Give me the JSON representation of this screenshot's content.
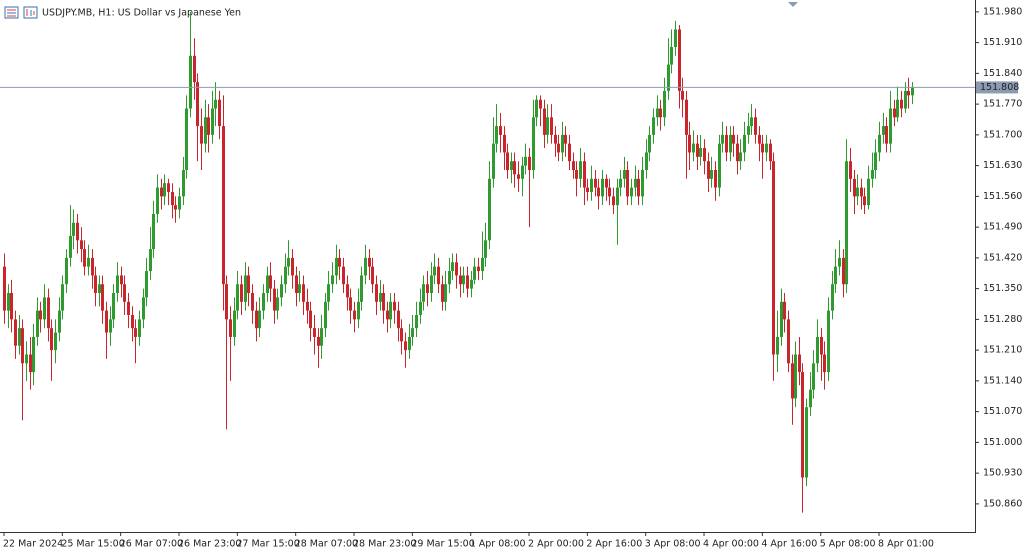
{
  "chart_data": {
    "type": "candlestick",
    "title": "USDJPY.MB, H1:  US Dollar vs Japanese Yen",
    "up_color": "#2f9a2f",
    "down_color": "#c8262c",
    "categories": [
      "22 Mar 2024",
      null,
      null,
      null,
      null,
      null,
      null,
      null,
      null,
      null,
      null,
      null,
      null,
      null,
      null,
      null,
      "25 Mar 15:00",
      null,
      null,
      null,
      null,
      null,
      null,
      null,
      null,
      null,
      null,
      null,
      null,
      null,
      null,
      null,
      "26 Mar 07:00",
      null,
      null,
      null,
      null,
      null,
      null,
      null,
      null,
      null,
      null,
      null,
      null,
      null,
      null,
      null,
      "26 Mar 23:00",
      null,
      null,
      null,
      null,
      null,
      null,
      null,
      null,
      null,
      null,
      null,
      null,
      null,
      null,
      null,
      "27 Mar 15:00",
      null,
      null,
      null,
      null,
      null,
      null,
      null,
      null,
      null,
      null,
      null,
      null,
      null,
      null,
      null,
      "28 Mar 07:00",
      null,
      null,
      null,
      null,
      null,
      null,
      null,
      null,
      null,
      null,
      null,
      null,
      null,
      null,
      null,
      "28 Mar 23:00",
      null,
      null,
      null,
      null,
      null,
      null,
      null,
      null,
      null,
      null,
      null,
      null,
      null,
      null,
      null,
      "29 Mar 15:00",
      null,
      null,
      null,
      null,
      null,
      null,
      null,
      null,
      null,
      null,
      null,
      null,
      null,
      null,
      null,
      "1 Apr 08:00",
      null,
      null,
      null,
      null,
      null,
      null,
      null,
      null,
      null,
      null,
      null,
      null,
      null,
      null,
      null,
      "2 Apr 00:00",
      null,
      null,
      null,
      null,
      null,
      null,
      null,
      null,
      null,
      null,
      null,
      null,
      null,
      null,
      null,
      "2 Apr 16:00",
      null,
      null,
      null,
      null,
      null,
      null,
      null,
      null,
      null,
      null,
      null,
      null,
      null,
      null,
      null,
      "3 Apr 08:00",
      null,
      null,
      null,
      null,
      null,
      null,
      null,
      null,
      null,
      null,
      null,
      null,
      null,
      null,
      null,
      "4 Apr 00:00",
      null,
      null,
      null,
      null,
      null,
      null,
      null,
      null,
      null,
      null,
      null,
      null,
      null,
      null,
      null,
      "4 Apr 16:00",
      null,
      null,
      null,
      null,
      null,
      null,
      null,
      null,
      null,
      null,
      null,
      null,
      null,
      null,
      null,
      "5 Apr 08:00",
      null,
      null,
      null,
      null,
      null,
      null,
      null,
      null,
      null,
      null,
      null,
      null,
      null,
      null,
      null,
      "8 Apr 01:00",
      null,
      null,
      null,
      null,
      null,
      null,
      null,
      null,
      null
    ],
    "open": [
      151.4,
      151.3,
      151.34,
      151.28,
      151.22,
      151.26,
      151.18,
      151.2,
      151.16,
      151.24,
      151.3,
      151.28,
      151.33,
      151.26,
      151.21,
      151.25,
      151.3,
      151.36,
      151.42,
      151.47,
      151.5,
      151.46,
      151.44,
      151.4,
      151.42,
      151.38,
      151.34,
      151.36,
      151.3,
      151.25,
      151.28,
      151.34,
      151.38,
      151.36,
      151.32,
      151.29,
      151.26,
      151.24,
      151.28,
      151.33,
      151.39,
      151.44,
      151.52,
      151.58,
      151.56,
      151.59,
      151.57,
      151.54,
      151.53,
      151.56,
      151.62,
      151.76,
      151.88,
      151.82,
      151.72,
      151.68,
      151.74,
      151.7,
      151.76,
      151.78,
      151.72,
      151.36,
      151.28,
      151.24,
      151.3,
      151.36,
      151.32,
      151.38,
      151.34,
      151.3,
      151.26,
      151.3,
      151.34,
      151.38,
      151.35,
      151.3,
      151.33,
      151.36,
      151.4,
      151.42,
      151.38,
      151.34,
      151.36,
      151.32,
      151.3,
      151.26,
      151.24,
      151.22,
      151.26,
      151.32,
      151.36,
      151.38,
      151.42,
      151.4,
      151.36,
      151.33,
      151.3,
      151.28,
      151.32,
      151.38,
      151.42,
      151.4,
      151.36,
      151.32,
      151.34,
      151.3,
      151.28,
      151.32,
      151.3,
      151.26,
      151.23,
      151.21,
      151.24,
      151.26,
      151.29,
      151.32,
      151.36,
      151.34,
      151.38,
      151.4,
      151.36,
      151.32,
      151.36,
      151.39,
      151.41,
      151.38,
      151.36,
      151.38,
      151.35,
      151.37,
      151.4,
      151.39,
      151.42,
      151.46,
      151.6,
      151.68,
      151.72,
      151.7,
      151.66,
      151.62,
      151.64,
      151.61,
      151.6,
      151.63,
      151.65,
      151.62,
      151.74,
      151.78,
      151.76,
      151.7,
      151.74,
      151.7,
      151.68,
      151.66,
      151.7,
      151.68,
      151.64,
      151.62,
      151.6,
      151.64,
      151.58,
      151.57,
      151.6,
      151.58,
      151.56,
      151.6,
      151.58,
      151.56,
      151.54,
      151.58,
      151.6,
      151.62,
      151.56,
      151.58,
      151.6,
      151.56,
      151.62,
      151.66,
      151.7,
      151.74,
      151.76,
      151.74,
      151.8,
      151.86,
      151.9,
      151.94,
      151.8,
      151.78,
      151.7,
      151.66,
      151.68,
      151.65,
      151.67,
      151.64,
      151.6,
      151.62,
      151.58,
      151.68,
      151.7,
      151.66,
      151.7,
      151.68,
      151.64,
      151.66,
      151.7,
      151.72,
      151.74,
      151.7,
      151.68,
      151.66,
      151.68,
      151.64,
      151.2,
      151.24,
      151.32,
      151.28,
      151.18,
      151.1,
      151.2,
      151.16,
      150.92,
      151.08,
      151.12,
      151.18,
      151.24,
      151.2,
      151.16,
      151.3,
      151.36,
      151.4,
      151.42,
      151.36,
      151.64,
      151.6,
      151.56,
      151.58,
      151.56,
      151.54,
      151.6,
      151.62,
      151.66,
      151.7,
      151.72,
      151.68,
      151.76,
      151.74,
      151.78,
      151.76,
      151.8,
      151.79
    ],
    "high": [
      151.43,
      151.36,
      151.37,
      151.3,
      151.29,
      151.28,
      151.23,
      151.24,
      151.27,
      151.33,
      151.32,
      151.36,
      151.35,
      151.28,
      151.28,
      151.33,
      151.38,
      151.44,
      151.54,
      151.53,
      151.52,
      151.49,
      151.46,
      151.45,
      151.44,
      151.4,
      151.38,
      151.38,
      151.32,
      151.31,
      151.36,
      151.41,
      151.4,
      151.38,
      151.34,
      151.31,
      151.28,
      151.3,
      151.35,
      151.42,
      151.49,
      151.55,
      151.61,
      151.6,
      151.61,
      151.6,
      151.59,
      151.56,
      151.58,
      151.65,
      151.79,
      151.98,
      151.92,
      151.84,
      151.76,
      151.78,
      151.77,
      151.8,
      151.82,
      151.8,
      151.79,
      151.38,
      151.31,
      151.33,
      151.39,
      151.38,
      151.41,
      151.4,
      151.36,
      151.32,
      151.33,
      151.36,
      151.4,
      151.41,
      151.37,
      151.35,
      151.38,
      151.43,
      151.46,
      151.44,
      151.4,
      151.39,
      151.38,
      151.35,
      151.32,
      151.29,
      151.26,
      151.29,
      151.34,
      151.39,
      151.41,
      151.45,
      151.44,
      151.42,
      151.38,
      151.35,
      151.32,
      151.35,
      151.4,
      151.45,
      151.44,
      151.42,
      151.38,
      151.37,
      151.36,
      151.32,
      151.34,
      151.34,
      151.32,
      151.28,
      151.25,
      151.27,
      151.29,
      151.32,
      151.35,
      151.38,
      151.39,
      151.41,
      151.43,
      151.42,
      151.38,
      151.39,
      151.42,
      151.43,
      151.43,
      151.4,
      151.4,
      151.4,
      151.39,
      151.42,
      151.42,
      151.48,
      151.5,
      151.64,
      151.74,
      151.77,
      151.75,
      151.72,
      151.68,
      151.66,
      151.66,
      151.64,
      151.65,
      151.68,
      151.67,
      151.78,
      151.79,
      151.79,
      151.78,
      151.77,
      151.77,
      151.72,
      151.7,
      151.73,
      151.72,
      151.7,
      151.66,
      151.64,
      151.67,
      151.66,
      151.6,
      151.63,
      151.62,
      151.6,
      151.62,
      151.61,
      151.6,
      151.58,
      151.6,
      151.62,
      151.65,
      151.64,
      151.6,
      151.63,
      151.62,
      151.65,
      151.69,
      151.72,
      151.76,
      151.79,
      151.78,
      151.83,
      151.92,
      151.94,
      151.96,
      151.95,
      151.83,
      151.8,
      151.73,
      151.71,
      151.7,
      151.7,
      151.69,
      151.66,
      151.65,
      151.64,
      151.7,
      151.73,
      151.72,
      151.72,
      151.72,
      151.7,
      151.69,
      151.73,
      151.75,
      151.77,
      151.76,
      151.72,
      151.7,
      151.7,
      151.69,
      151.66,
      151.3,
      151.35,
      151.34,
      151.3,
      151.2,
      151.23,
      151.24,
      151.18,
      151.1,
      151.16,
      151.21,
      151.28,
      151.26,
      151.23,
      151.33,
      151.39,
      151.44,
      151.46,
      151.44,
      151.69,
      151.67,
      151.62,
      151.61,
      151.6,
      151.58,
      151.63,
      151.66,
      151.69,
      151.73,
      151.75,
      151.74,
      151.8,
      151.78,
      151.81,
      151.8,
      151.82,
      151.83,
      151.82
    ],
    "low": [
      151.27,
      151.26,
      151.25,
      151.19,
      151.2,
      151.05,
      151.14,
      151.12,
      151.13,
      151.22,
      151.25,
      151.26,
      151.23,
      151.14,
      151.18,
      151.23,
      151.28,
      151.34,
      151.4,
      151.44,
      151.43,
      151.41,
      151.38,
      151.38,
      151.35,
      151.31,
      151.31,
      151.27,
      151.19,
      151.22,
      151.26,
      151.32,
      151.33,
      151.29,
      151.26,
      151.23,
      151.18,
      151.22,
      151.26,
      151.31,
      151.37,
      151.42,
      151.5,
      151.53,
      151.54,
      151.54,
      151.51,
      151.5,
      151.51,
      151.54,
      151.6,
      151.74,
      151.78,
      151.64,
      151.62,
      151.66,
      151.66,
      151.68,
      151.72,
      151.69,
      151.3,
      151.03,
      151.14,
      151.22,
      151.28,
      151.29,
      151.3,
      151.31,
      151.27,
      151.23,
      151.24,
      151.28,
      151.32,
      151.32,
      151.27,
      151.28,
      151.31,
      151.34,
      151.38,
      151.35,
      151.31,
      151.32,
      151.29,
      151.27,
      151.23,
      151.2,
      151.17,
      151.19,
      151.24,
      151.3,
      151.34,
      151.36,
      151.37,
      151.34,
      151.3,
      151.27,
      151.25,
      151.26,
      151.3,
      151.36,
      151.37,
      151.34,
      151.29,
      151.3,
      151.27,
      151.25,
      151.26,
      151.27,
      151.23,
      151.2,
      151.17,
      151.19,
      151.22,
      151.24,
      151.27,
      151.3,
      151.31,
      151.32,
      151.36,
      151.34,
      151.3,
      151.3,
      151.34,
      151.37,
      151.35,
      151.33,
      151.34,
      151.33,
      151.33,
      151.36,
      151.37,
      151.37,
      151.4,
      151.44,
      151.58,
      151.66,
      151.66,
      151.62,
      151.6,
      151.59,
      151.58,
      151.57,
      151.56,
      151.61,
      151.49,
      151.6,
      151.72,
      151.72,
      151.67,
      151.68,
      151.68,
      151.65,
      151.64,
      151.64,
      151.65,
      151.62,
      151.6,
      151.56,
      151.58,
      151.54,
      151.55,
      151.55,
      151.56,
      151.53,
      151.54,
      151.55,
      151.54,
      151.52,
      151.45,
      151.56,
      151.58,
      151.54,
      151.54,
      151.56,
      151.54,
      151.54,
      151.6,
      151.64,
      151.68,
      151.72,
      151.71,
      151.72,
      151.78,
      151.84,
      151.88,
      151.76,
      151.74,
      151.6,
      151.62,
      151.64,
      151.62,
      151.63,
      151.61,
      151.57,
      151.58,
      151.55,
      151.56,
      151.66,
      151.64,
      151.64,
      151.65,
      151.61,
      151.62,
      151.64,
      151.68,
      151.7,
      151.68,
      151.64,
      151.6,
      151.64,
      151.62,
      151.14,
      151.16,
      151.22,
      151.25,
      151.16,
      151.04,
      151.08,
      151.13,
      150.84,
      150.9,
      151.06,
      151.1,
      151.16,
      151.14,
      151.12,
      151.14,
      151.28,
      151.34,
      151.38,
      151.33,
      151.34,
      151.57,
      151.52,
      151.54,
      151.53,
      151.52,
      151.53,
      151.58,
      151.6,
      151.64,
      151.68,
      151.66,
      151.66,
      151.72,
      151.73,
      151.74,
      151.75,
      151.76,
      151.77
    ],
    "close": [
      151.3,
      151.34,
      151.28,
      151.22,
      151.26,
      151.18,
      151.2,
      151.16,
      151.24,
      151.3,
      151.28,
      151.33,
      151.26,
      151.21,
      151.25,
      151.3,
      151.36,
      151.42,
      151.47,
      151.5,
      151.46,
      151.44,
      151.4,
      151.42,
      151.38,
      151.34,
      151.36,
      151.3,
      151.25,
      151.28,
      151.34,
      151.38,
      151.36,
      151.32,
      151.29,
      151.26,
      151.24,
      151.28,
      151.33,
      151.39,
      151.44,
      151.52,
      151.58,
      151.56,
      151.59,
      151.57,
      151.54,
      151.53,
      151.56,
      151.62,
      151.76,
      151.88,
      151.82,
      151.72,
      151.68,
      151.74,
      151.7,
      151.76,
      151.78,
      151.72,
      151.36,
      151.28,
      151.24,
      151.3,
      151.36,
      151.32,
      151.38,
      151.34,
      151.3,
      151.26,
      151.3,
      151.34,
      151.38,
      151.35,
      151.3,
      151.33,
      151.36,
      151.4,
      151.42,
      151.38,
      151.34,
      151.36,
      151.32,
      151.3,
      151.26,
      151.24,
      151.22,
      151.26,
      151.32,
      151.36,
      151.38,
      151.42,
      151.4,
      151.36,
      151.33,
      151.3,
      151.28,
      151.32,
      151.38,
      151.42,
      151.4,
      151.36,
      151.32,
      151.34,
      151.3,
      151.28,
      151.32,
      151.3,
      151.26,
      151.23,
      151.21,
      151.24,
      151.26,
      151.29,
      151.32,
      151.36,
      151.34,
      151.38,
      151.4,
      151.36,
      151.32,
      151.36,
      151.39,
      151.41,
      151.38,
      151.36,
      151.38,
      151.35,
      151.37,
      151.4,
      151.39,
      151.42,
      151.46,
      151.6,
      151.68,
      151.72,
      151.7,
      151.66,
      151.62,
      151.64,
      151.61,
      151.6,
      151.63,
      151.65,
      151.62,
      151.74,
      151.78,
      151.76,
      151.7,
      151.74,
      151.7,
      151.68,
      151.66,
      151.7,
      151.68,
      151.64,
      151.62,
      151.6,
      151.64,
      151.58,
      151.57,
      151.6,
      151.58,
      151.56,
      151.6,
      151.58,
      151.56,
      151.54,
      151.58,
      151.6,
      151.62,
      151.56,
      151.58,
      151.6,
      151.56,
      151.62,
      151.66,
      151.7,
      151.74,
      151.76,
      151.74,
      151.8,
      151.86,
      151.9,
      151.94,
      151.8,
      151.78,
      151.7,
      151.66,
      151.68,
      151.65,
      151.67,
      151.64,
      151.6,
      151.62,
      151.58,
      151.68,
      151.7,
      151.66,
      151.7,
      151.68,
      151.64,
      151.66,
      151.7,
      151.72,
      151.74,
      151.7,
      151.68,
      151.66,
      151.68,
      151.64,
      151.2,
      151.24,
      151.32,
      151.28,
      151.18,
      151.1,
      151.2,
      151.16,
      150.92,
      151.08,
      151.12,
      151.18,
      151.24,
      151.2,
      151.16,
      151.3,
      151.36,
      151.4,
      151.42,
      151.36,
      151.64,
      151.6,
      151.56,
      151.58,
      151.56,
      151.54,
      151.6,
      151.62,
      151.66,
      151.7,
      151.72,
      151.68,
      151.76,
      151.74,
      151.78,
      151.76,
      151.8,
      151.79,
      151.808
    ],
    "ylim": [
      150.796,
      152.007
    ],
    "yticks": [
      {
        "value": 151.98,
        "label": "151.980"
      },
      {
        "value": 151.91,
        "label": "151.910"
      },
      {
        "value": 151.84,
        "label": "151.840"
      },
      {
        "value": 151.77,
        "label": "151.770"
      },
      {
        "value": 151.7,
        "label": "151.700"
      },
      {
        "value": 151.63,
        "label": "151.630"
      },
      {
        "value": 151.56,
        "label": "151.560"
      },
      {
        "value": 151.49,
        "label": "151.490"
      },
      {
        "value": 151.42,
        "label": "151.420"
      },
      {
        "value": 151.35,
        "label": "151.350"
      },
      {
        "value": 151.28,
        "label": "151.280"
      },
      {
        "value": 151.21,
        "label": "151.210"
      },
      {
        "value": 151.14,
        "label": "151.140"
      },
      {
        "value": 151.07,
        "label": "151.070"
      },
      {
        "value": 151.0,
        "label": "151.000"
      },
      {
        "value": 150.93,
        "label": "150.930"
      },
      {
        "value": 150.86,
        "label": "150.860"
      }
    ],
    "price_line": 151.808,
    "price_line_color": "#8c9cb0"
  }
}
